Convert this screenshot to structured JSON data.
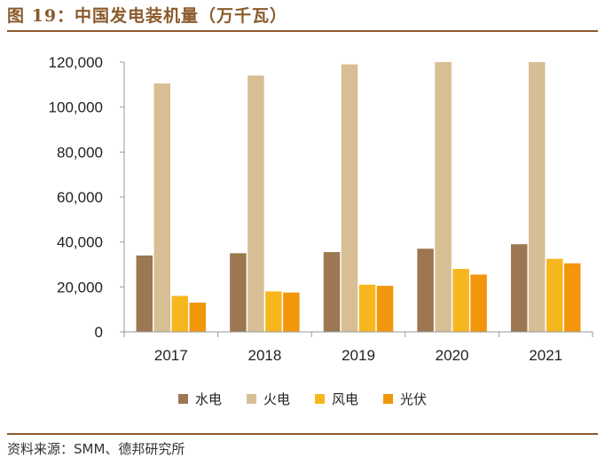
{
  "figure": {
    "title": "图 19：中国发电装机量（万千瓦）",
    "source": "资料来源：SMM、德邦研究所"
  },
  "chart_data": {
    "type": "bar",
    "categories": [
      "2017",
      "2018",
      "2019",
      "2020",
      "2021"
    ],
    "series": [
      {
        "name": "水电",
        "color": "#9c7751",
        "values": [
          34000,
          35000,
          35500,
          37000,
          39000
        ]
      },
      {
        "name": "火电",
        "color": "#d8be94",
        "values": [
          110500,
          114000,
          119000,
          120000,
          120000
        ]
      },
      {
        "name": "风电",
        "color": "#f6b71e",
        "values": [
          16000,
          18000,
          21000,
          28000,
          32500
        ]
      },
      {
        "name": "光伏",
        "color": "#f2960c",
        "values": [
          13000,
          17500,
          20500,
          25500,
          30500
        ]
      }
    ],
    "ylim": [
      0,
      120000
    ],
    "yticks": [
      "0",
      "20,000",
      "40,000",
      "60,000",
      "80,000",
      "100,000",
      "120,000"
    ],
    "grid": false,
    "legend_position": "bottom"
  }
}
